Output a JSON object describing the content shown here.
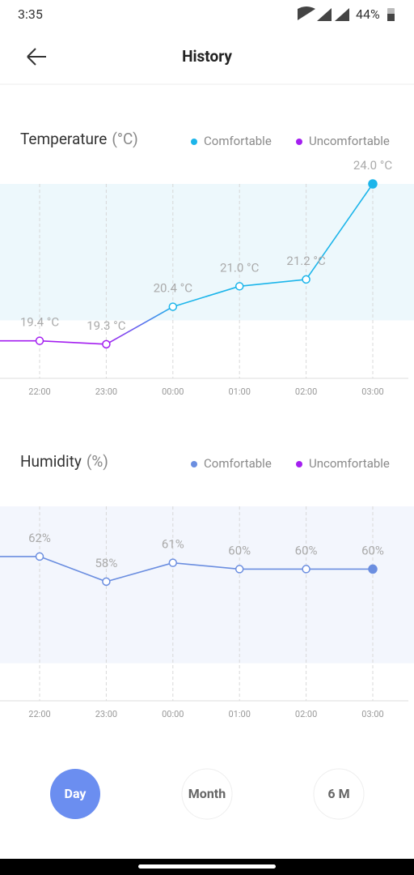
{
  "status_bar": {
    "time": "3:35",
    "battery": "44%"
  },
  "header": {
    "title": "History"
  },
  "chart_data": [
    {
      "type": "line",
      "title": "Temperature",
      "unit": "(°C)",
      "legend": [
        {
          "name": "Comfortable",
          "color": "#1cb5ea"
        },
        {
          "name": "Uncomfortable",
          "color": "#a41ff0"
        }
      ],
      "categories": [
        null,
        "22:00",
        "23:00",
        "00:00",
        "01:00",
        "02:00",
        "03:00"
      ],
      "values": [
        19.4,
        19.4,
        19.3,
        20.4,
        21.0,
        21.2,
        24.0
      ],
      "value_labels": [
        null,
        "19.4 °C",
        "19.3 °C",
        "20.4 °C",
        "21.0 °C",
        "21.2 °C",
        "24.0 °C"
      ],
      "comfort_range": [
        20,
        24
      ],
      "band_color": "#edf8fc",
      "ylim": [
        18.3,
        24
      ]
    },
    {
      "type": "line",
      "title": "Humidity",
      "unit": "(%)",
      "legend": [
        {
          "name": "Comfortable",
          "color": "#6b8ee0"
        },
        {
          "name": "Uncomfortable",
          "color": "#a41ff0"
        }
      ],
      "categories": [
        null,
        "22:00",
        "23:00",
        "00:00",
        "01:00",
        "02:00",
        "03:00"
      ],
      "values": [
        62,
        62,
        58,
        61,
        60,
        60,
        60
      ],
      "value_labels": [
        null,
        "62%",
        "58%",
        "61%",
        "60%",
        "60%",
        "60%"
      ],
      "comfort_range": [
        45,
        70
      ],
      "band_color": "#f3f6fd",
      "ylim": [
        39,
        70
      ]
    }
  ],
  "tabs": [
    "Day",
    "Month",
    "6 M"
  ]
}
